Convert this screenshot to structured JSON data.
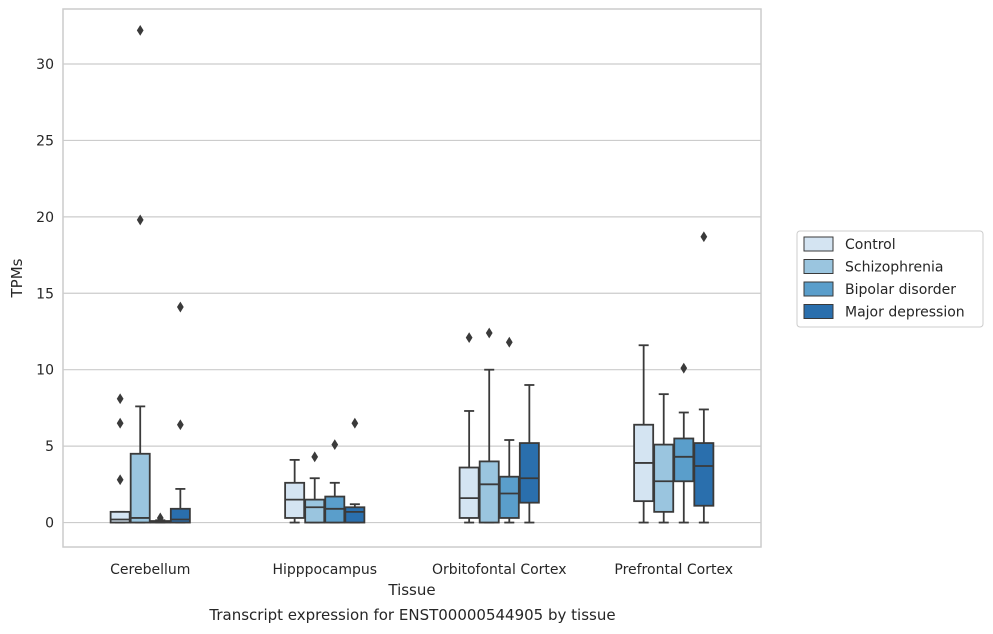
{
  "caption": "Transcript expression for ENST00000544905 by tissue",
  "chart_data": {
    "type": "box",
    "xlabel": "Tissue",
    "ylabel": "TPMs",
    "ylim": [
      -1.6,
      33.6
    ],
    "yticks": [
      0,
      5,
      10,
      15,
      20,
      25,
      30
    ],
    "grid": true,
    "legend_position": "right",
    "categories": [
      "Cerebellum",
      "Hipppocampus",
      "Orbitofontal Cortex",
      "Prefrontal Cortex"
    ],
    "series": [
      {
        "name": "Control",
        "color": "#d4e4f2",
        "boxes": [
          {
            "whislo": 0,
            "q1": 0,
            "med": 0.2,
            "q3": 0.7,
            "whishi": 0.7,
            "fliers": [
              2.8,
              6.5,
              8.1
            ]
          },
          {
            "whislo": 0,
            "q1": 0.3,
            "med": 1.5,
            "q3": 2.6,
            "whishi": 4.1,
            "fliers": []
          },
          {
            "whislo": 0,
            "q1": 0.3,
            "med": 1.6,
            "q3": 3.6,
            "whishi": 7.3,
            "fliers": [
              12.1
            ]
          },
          {
            "whislo": 0,
            "q1": 1.4,
            "med": 3.9,
            "q3": 6.4,
            "whishi": 11.6,
            "fliers": []
          }
        ]
      },
      {
        "name": "Schizophrenia",
        "color": "#9ac5df",
        "boxes": [
          {
            "whislo": 0,
            "q1": 0,
            "med": 0.3,
            "q3": 4.5,
            "whishi": 7.6,
            "fliers": [
              19.8,
              32.2
            ]
          },
          {
            "whislo": 0,
            "q1": 0,
            "med": 1.0,
            "q3": 1.5,
            "whishi": 2.9,
            "fliers": [
              4.3
            ]
          },
          {
            "whislo": 0,
            "q1": 0,
            "med": 2.5,
            "q3": 4.0,
            "whishi": 10.0,
            "fliers": [
              12.4
            ]
          },
          {
            "whislo": 0,
            "q1": 0.7,
            "med": 2.7,
            "q3": 5.1,
            "whishi": 8.4,
            "fliers": []
          }
        ]
      },
      {
        "name": "Bipolar disorder",
        "color": "#5a9ecb",
        "boxes": [
          {
            "whislo": 0,
            "q1": 0,
            "med": 0.05,
            "q3": 0.1,
            "whishi": 0.15,
            "fliers": [
              0.3
            ]
          },
          {
            "whislo": 0,
            "q1": 0,
            "med": 0.9,
            "q3": 1.7,
            "whishi": 2.6,
            "fliers": [
              5.1
            ]
          },
          {
            "whislo": 0,
            "q1": 0.3,
            "med": 1.9,
            "q3": 3.0,
            "whishi": 5.4,
            "fliers": [
              11.8
            ]
          },
          {
            "whislo": 0,
            "q1": 2.7,
            "med": 4.3,
            "q3": 5.5,
            "whishi": 7.2,
            "fliers": [
              10.1
            ]
          }
        ]
      },
      {
        "name": "Major depression",
        "color": "#2a6fad",
        "boxes": [
          {
            "whislo": 0,
            "q1": 0,
            "med": 0.2,
            "q3": 0.9,
            "whishi": 2.2,
            "fliers": [
              6.4,
              14.1
            ]
          },
          {
            "whislo": 0,
            "q1": 0,
            "med": 0.7,
            "q3": 1.0,
            "whishi": 1.2,
            "fliers": [
              6.5
            ]
          },
          {
            "whislo": 0,
            "q1": 1.3,
            "med": 2.9,
            "q3": 5.2,
            "whishi": 9.0,
            "fliers": []
          },
          {
            "whislo": 0,
            "q1": 1.1,
            "med": 3.7,
            "q3": 5.2,
            "whishi": 7.4,
            "fliers": [
              18.7
            ]
          }
        ]
      }
    ]
  }
}
